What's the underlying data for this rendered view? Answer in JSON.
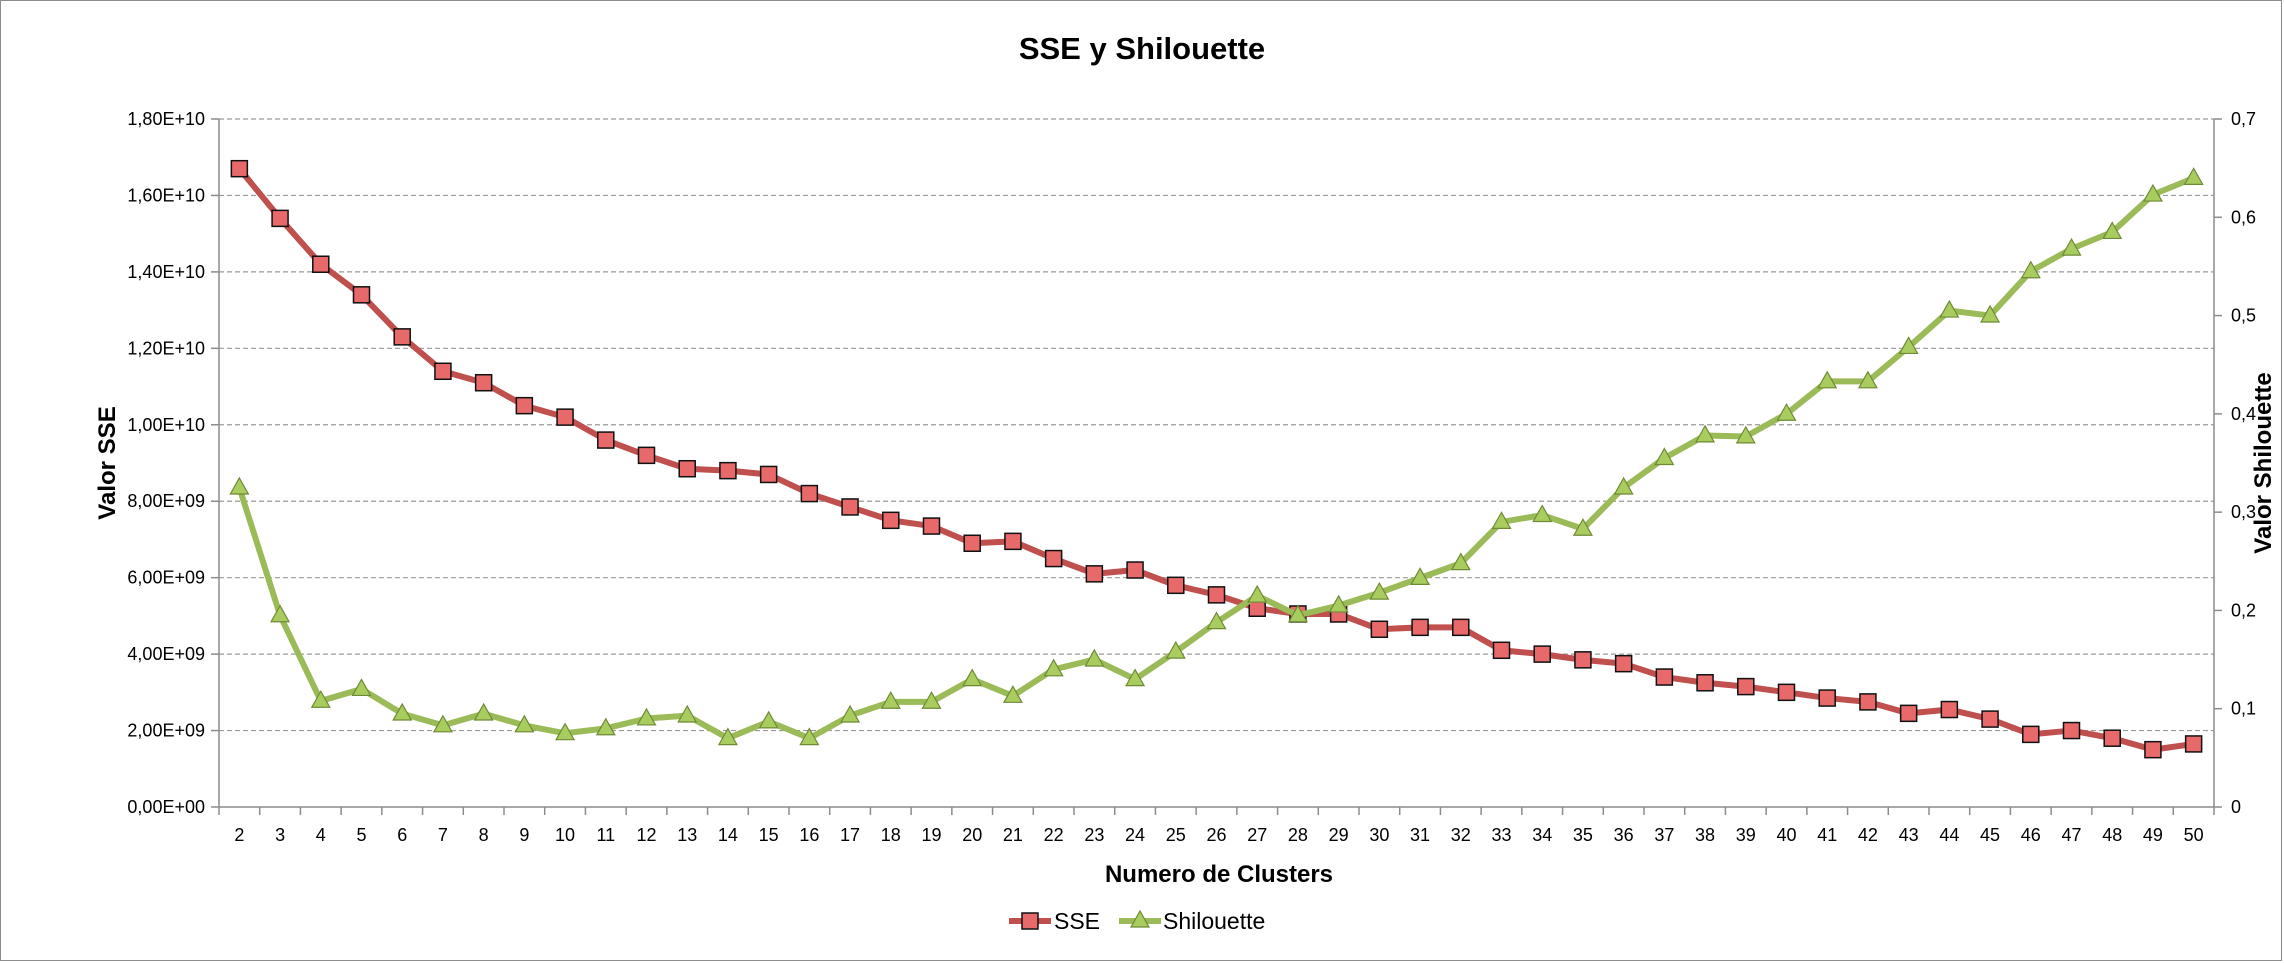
{
  "chart_data": {
    "type": "line",
    "title": "SSE y Shilouette",
    "xlabel": "Numero de Clusters",
    "ylabel": "Valor SSE",
    "y2label": "Valor Shilouette",
    "categories": [
      "2",
      "3",
      "4",
      "5",
      "6",
      "7",
      "8",
      "9",
      "10",
      "11",
      "12",
      "13",
      "14",
      "15",
      "16",
      "17",
      "18",
      "19",
      "20",
      "21",
      "22",
      "23",
      "24",
      "25",
      "26",
      "27",
      "28",
      "29",
      "30",
      "31",
      "32",
      "33",
      "34",
      "35",
      "36",
      "37",
      "38",
      "39",
      "40",
      "41",
      "42",
      "43",
      "44",
      "45",
      "46",
      "47",
      "48",
      "49",
      "50"
    ],
    "ylim": [
      0,
      18000000000
    ],
    "y_ticks": [
      "0,00E+00",
      "2,00E+09",
      "4,00E+09",
      "6,00E+09",
      "8,00E+09",
      "1,00E+10",
      "1,20E+10",
      "1,40E+10",
      "1,60E+10",
      "1,80E+10"
    ],
    "y2lim": [
      0,
      0.7
    ],
    "y2_ticks": [
      "0",
      "0,1",
      "0,2",
      "0,3",
      "0,4",
      "0,5",
      "0,6",
      "0,7"
    ],
    "grid": true,
    "legend_position": "bottom",
    "series": [
      {
        "name": "SSE",
        "axis": "left",
        "color": "#c0504d",
        "marker_fill": "#e8696a",
        "marker": "square",
        "values": [
          16700000000,
          15400000000,
          14200000000,
          13400000000,
          12300000000,
          11400000000,
          11100000000,
          10500000000,
          10200000000,
          9600000000,
          9200000000,
          8850000000,
          8800000000,
          8700000000,
          8200000000,
          7850000000,
          7500000000,
          7350000000,
          6900000000,
          6950000000,
          6500000000,
          6100000000,
          6200000000,
          5800000000,
          5550000000,
          5200000000,
          5050000000,
          5050000000,
          4650000000,
          4700000000,
          4700000000,
          4100000000,
          4000000000,
          3850000000,
          3750000000,
          3400000000,
          3250000000,
          3150000000,
          3000000000,
          2850000000,
          2750000000,
          2450000000,
          2550000000,
          2300000000,
          1900000000,
          2000000000,
          1800000000,
          1500000000,
          1650000000
        ]
      },
      {
        "name": "Shilouette",
        "axis": "right",
        "color": "#9bbb59",
        "marker_fill": "#a9cc5f",
        "marker": "triangle",
        "values": [
          0.325,
          0.195,
          0.108,
          0.12,
          0.095,
          0.083,
          0.095,
          0.083,
          0.075,
          0.08,
          0.09,
          0.093,
          0.07,
          0.087,
          0.07,
          0.093,
          0.107,
          0.107,
          0.13,
          0.113,
          0.14,
          0.15,
          0.13,
          0.158,
          0.188,
          0.215,
          0.195,
          0.205,
          0.218,
          0.233,
          0.248,
          0.29,
          0.297,
          0.283,
          0.325,
          0.355,
          0.378,
          0.377,
          0.4,
          0.433,
          0.433,
          0.468,
          0.505,
          0.5,
          0.545,
          0.568,
          0.585,
          0.623,
          0.64
        ]
      }
    ]
  }
}
